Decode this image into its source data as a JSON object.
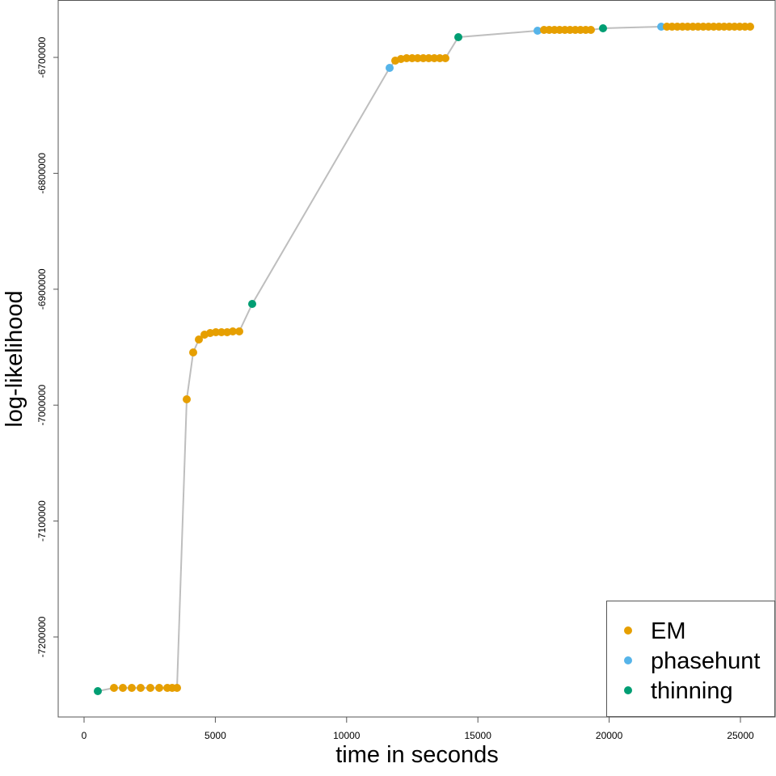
{
  "chart_data": {
    "type": "scatter",
    "title": "",
    "xlabel": "time in seconds",
    "ylabel": "log-likelihood",
    "xlim": [
      -1000,
      26300
    ],
    "ylim": [
      -7265500,
      -6650500
    ],
    "x_ticks": [
      0,
      5000,
      10000,
      15000,
      20000,
      25000
    ],
    "x_tick_labels": [
      "0",
      "5000",
      "10000",
      "15000",
      "20000",
      "25000"
    ],
    "y_ticks": [
      -6700000,
      -6800000,
      -6900000,
      -7000000,
      -7100000,
      -7200000
    ],
    "y_tick_labels": [
      "-6700000",
      "-6800000",
      "-6900000",
      "-7000000",
      "-7100000",
      "-7200000"
    ],
    "grid": false,
    "legend_position": "bottom-right",
    "line_color": "#bebebe",
    "colors": {
      "EM": "#E69F00",
      "phasehunt": "#56B4E9",
      "thinning": "#009E73"
    },
    "legend": [
      {
        "label": "EM",
        "color": "#E69F00"
      },
      {
        "label": "phasehunt",
        "color": "#56B4E9"
      },
      {
        "label": "thinning",
        "color": "#009E73"
      }
    ],
    "points": [
      {
        "x": 523,
        "y": -7246700,
        "type": "thinning"
      },
      {
        "x": 1139,
        "y": -7243900,
        "type": "EM"
      },
      {
        "x": 1478,
        "y": -7243900,
        "type": "EM"
      },
      {
        "x": 1817,
        "y": -7243900,
        "type": "EM"
      },
      {
        "x": 2155,
        "y": -7243900,
        "type": "EM"
      },
      {
        "x": 2525,
        "y": -7243900,
        "type": "EM"
      },
      {
        "x": 2863,
        "y": -7243900,
        "type": "EM"
      },
      {
        "x": 3171,
        "y": -7243900,
        "type": "EM"
      },
      {
        "x": 3356,
        "y": -7243900,
        "type": "EM"
      },
      {
        "x": 3541,
        "y": -7243900,
        "type": "EM"
      },
      {
        "x": 3910,
        "y": -6995000,
        "type": "EM"
      },
      {
        "x": 4156,
        "y": -6954500,
        "type": "EM"
      },
      {
        "x": 4372,
        "y": -6943400,
        "type": "EM"
      },
      {
        "x": 4587,
        "y": -6939200,
        "type": "EM"
      },
      {
        "x": 4803,
        "y": -6937800,
        "type": "EM"
      },
      {
        "x": 5018,
        "y": -6937100,
        "type": "EM"
      },
      {
        "x": 5234,
        "y": -6937100,
        "type": "EM"
      },
      {
        "x": 5450,
        "y": -6937100,
        "type": "EM"
      },
      {
        "x": 5665,
        "y": -6936400,
        "type": "EM"
      },
      {
        "x": 5911,
        "y": -6936400,
        "type": "EM"
      },
      {
        "x": 6404,
        "y": -6912700,
        "type": "thinning"
      },
      {
        "x": 11638,
        "y": -6709100,
        "type": "phasehunt"
      },
      {
        "x": 11853,
        "y": -6702800,
        "type": "EM"
      },
      {
        "x": 12069,
        "y": -6701400,
        "type": "EM"
      },
      {
        "x": 12284,
        "y": -6700700,
        "type": "EM"
      },
      {
        "x": 12496,
        "y": -6700700,
        "type": "EM"
      },
      {
        "x": 12707,
        "y": -6700700,
        "type": "EM"
      },
      {
        "x": 12918,
        "y": -6700700,
        "type": "EM"
      },
      {
        "x": 13129,
        "y": -6700700,
        "type": "EM"
      },
      {
        "x": 13340,
        "y": -6700700,
        "type": "EM"
      },
      {
        "x": 13551,
        "y": -6700700,
        "type": "EM"
      },
      {
        "x": 13762,
        "y": -6700700,
        "type": "EM"
      },
      {
        "x": 14255,
        "y": -6682600,
        "type": "thinning"
      },
      {
        "x": 17272,
        "y": -6677000,
        "type": "phasehunt"
      },
      {
        "x": 17518,
        "y": -6676300,
        "type": "EM"
      },
      {
        "x": 17716,
        "y": -6676300,
        "type": "EM"
      },
      {
        "x": 17915,
        "y": -6676300,
        "type": "EM"
      },
      {
        "x": 18113,
        "y": -6676300,
        "type": "EM"
      },
      {
        "x": 18312,
        "y": -6676300,
        "type": "EM"
      },
      {
        "x": 18510,
        "y": -6676300,
        "type": "EM"
      },
      {
        "x": 18709,
        "y": -6676300,
        "type": "EM"
      },
      {
        "x": 18907,
        "y": -6676300,
        "type": "EM"
      },
      {
        "x": 19106,
        "y": -6676300,
        "type": "EM"
      },
      {
        "x": 19304,
        "y": -6676300,
        "type": "EM"
      },
      {
        "x": 19766,
        "y": -6674900,
        "type": "thinning"
      },
      {
        "x": 21983,
        "y": -6673500,
        "type": "phasehunt"
      },
      {
        "x": 22198,
        "y": -6673500,
        "type": "EM"
      },
      {
        "x": 22396,
        "y": -6673500,
        "type": "EM"
      },
      {
        "x": 22594,
        "y": -6673500,
        "type": "EM"
      },
      {
        "x": 22792,
        "y": -6673500,
        "type": "EM"
      },
      {
        "x": 22990,
        "y": -6673500,
        "type": "EM"
      },
      {
        "x": 23189,
        "y": -6673500,
        "type": "EM"
      },
      {
        "x": 23387,
        "y": -6673500,
        "type": "EM"
      },
      {
        "x": 23585,
        "y": -6673500,
        "type": "EM"
      },
      {
        "x": 23783,
        "y": -6673500,
        "type": "EM"
      },
      {
        "x": 23981,
        "y": -6673500,
        "type": "EM"
      },
      {
        "x": 24180,
        "y": -6673500,
        "type": "EM"
      },
      {
        "x": 24378,
        "y": -6673500,
        "type": "EM"
      },
      {
        "x": 24576,
        "y": -6673500,
        "type": "EM"
      },
      {
        "x": 24774,
        "y": -6673500,
        "type": "EM"
      },
      {
        "x": 24972,
        "y": -6673500,
        "type": "EM"
      },
      {
        "x": 25171,
        "y": -6673500,
        "type": "EM"
      },
      {
        "x": 25369,
        "y": -6673500,
        "type": "EM"
      }
    ]
  }
}
